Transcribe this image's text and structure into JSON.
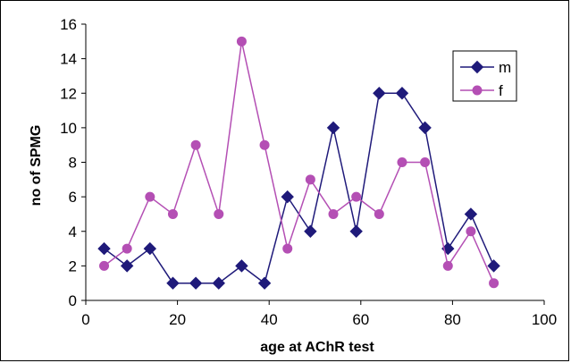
{
  "chart_data": {
    "type": "line",
    "xlabel": "age at AChR test",
    "ylabel": "no of SPMG",
    "xlim": [
      0,
      100
    ],
    "ylim": [
      0,
      16
    ],
    "xticks": [
      0,
      20,
      40,
      60,
      80,
      100
    ],
    "yticks": [
      0,
      2,
      4,
      6,
      8,
      10,
      12,
      14,
      16
    ],
    "grid": false,
    "legend_position": "top-right",
    "series": [
      {
        "name": "m",
        "color": "#1f1a7a",
        "marker": "diamond",
        "x": [
          4,
          9,
          14,
          19,
          24,
          29,
          34,
          39,
          44,
          49,
          54,
          59,
          64,
          69,
          74,
          79,
          84,
          89
        ],
        "values": [
          3,
          2,
          3,
          1,
          1,
          1,
          2,
          1,
          6,
          4,
          10,
          4,
          12,
          12,
          10,
          3,
          5,
          2
        ]
      },
      {
        "name": "f",
        "color": "#b44fb4",
        "marker": "circle",
        "x": [
          4,
          9,
          14,
          19,
          24,
          29,
          34,
          39,
          44,
          49,
          54,
          59,
          64,
          69,
          74,
          79,
          84,
          89
        ],
        "values": [
          2,
          3,
          6,
          5,
          9,
          5,
          15,
          9,
          3,
          7,
          5,
          6,
          5,
          8,
          8,
          2,
          4,
          1
        ]
      }
    ]
  }
}
